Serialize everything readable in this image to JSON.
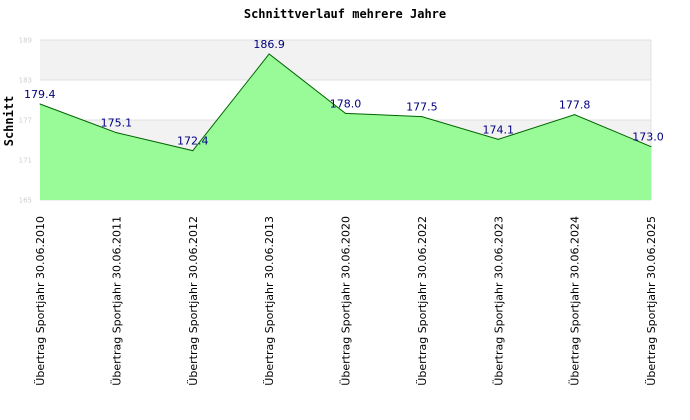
{
  "chart_data": {
    "type": "area",
    "title": "Schnittverlauf mehrere Jahre",
    "ylabel": "Schnitt",
    "xlabel": "",
    "ylim": [
      165,
      189
    ],
    "yticks": [
      {
        "value": 189,
        "label": "189"
      },
      {
        "value": 183,
        "label": "183"
      },
      {
        "value": 177,
        "label": "177"
      },
      {
        "value": 171,
        "label": "171"
      },
      {
        "value": 165,
        "label": "165"
      }
    ],
    "grid": true,
    "categories": [
      "Übertrag Sportjahr 30.06.2010",
      "Übertrag Sportjahr 30.06.2011",
      "Übertrag Sportjahr 30.06.2012",
      "Übertrag Sportjahr 30.06.2013",
      "Übertrag Sportjahr 30.06.2020",
      "Übertrag Sportjahr 30.06.2022",
      "Übertrag Sportjahr 30.06.2023",
      "Übertrag Sportjahr 30.06.2024",
      "Übertrag Sportjahr 30.06.2025"
    ],
    "series": [
      {
        "values": [
          179.4,
          175.1,
          172.4,
          186.9,
          178.0,
          177.5,
          174.1,
          177.8,
          173.0
        ],
        "labels": [
          "179.4",
          "175.1",
          "172.4",
          "186.9",
          "178.0",
          "177.5",
          "174.1",
          "177.8",
          "173.0"
        ]
      }
    ],
    "colors": {
      "fill": "#98fb98",
      "line": "#006400",
      "data_label": "#000080",
      "band_light": "#f2f2f2",
      "band_white": "#ffffff",
      "grid": "#e0e0e0",
      "ytick": "#cfcfcf"
    }
  }
}
